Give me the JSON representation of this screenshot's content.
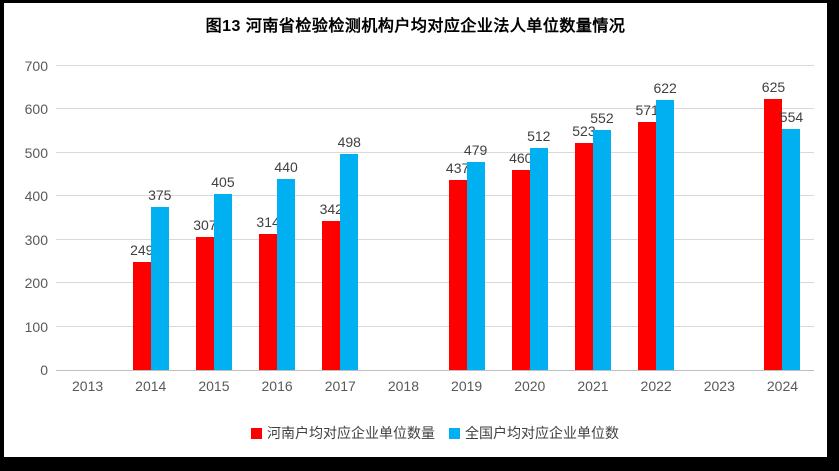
{
  "title_bar": {
    "title": "图13  河南省检验检测机构户均对应企业法人单位数量情况"
  },
  "legend": [
    {
      "id": "henan",
      "label": "河南户均对应企业单位数量",
      "color": "#FF0000"
    },
    {
      "id": "national",
      "label": "全国户均对应企业单位数",
      "color": "#00B0F0"
    }
  ],
  "colors": {
    "series_henan": "#FF0000",
    "series_national": "#00B0F0",
    "grid": "#D9D9D9",
    "axis_line": "#BFBFBF",
    "tick_text": "#595959",
    "value_text": "#404040",
    "frame": "#000000"
  },
  "chart_data": {
    "type": "bar",
    "title": "图13  河南省检验检测机构户均对应企业法人单位数量情况",
    "categories": [
      "2013",
      "2014",
      "2015",
      "2016",
      "2017",
      "2018",
      "2019",
      "2020",
      "2021",
      "2022",
      "2023",
      "2024"
    ],
    "series": [
      {
        "name": "河南户均对应企业单位数量",
        "color": "#FF0000",
        "values": [
          null,
          249,
          307,
          314,
          342,
          null,
          437,
          460,
          523,
          571,
          null,
          625
        ]
      },
      {
        "name": "全国户均对应企业单位数",
        "color": "#00B0F0",
        "values": [
          null,
          375,
          405,
          440,
          498,
          null,
          479,
          512,
          552,
          622,
          null,
          554
        ]
      }
    ],
    "xlabel": "",
    "ylabel": "",
    "ylim": [
      0,
      700
    ],
    "ytick_step": 100,
    "yticks": [
      0,
      100,
      200,
      300,
      400,
      500,
      600,
      700
    ],
    "grid": true,
    "legend_position": "bottom",
    "data_labels": true
  }
}
